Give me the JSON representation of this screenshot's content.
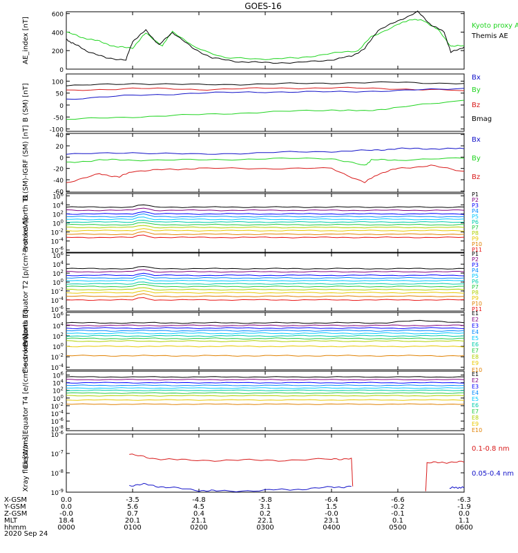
{
  "title": "GOES-16",
  "date": "2020 Sep 24",
  "colors": {
    "black": "#000000",
    "green": "#1fd41f",
    "blue": "#1010c8",
    "red": "#d81818",
    "protons": [
      "#000000",
      "#800080",
      "#0000ff",
      "#0088ff",
      "#00c8ff",
      "#00ccaa",
      "#22cc44",
      "#b0d000",
      "#e8c800",
      "#e08000",
      "#e81010"
    ],
    "electrons": [
      "#000000",
      "#800080",
      "#0000ff",
      "#0088ff",
      "#00c8ff",
      "#00ccaa",
      "#22cc44",
      "#b0d000",
      "#e8c800",
      "#e08000"
    ]
  },
  "chart_data": [
    {
      "type": "line",
      "ylabel": "AE_index [nT]",
      "yticks": [
        "0",
        "200",
        "400",
        "600"
      ],
      "ylim": [
        0,
        620
      ],
      "legend": [
        {
          "label": "Kyoto proxy AE",
          "color": "#1fd41f"
        },
        {
          "label": "Themis AE",
          "color": "#000000"
        }
      ],
      "series": [
        {
          "name": "Kyoto proxy AE",
          "color": "#1fd41f",
          "x": [
            0,
            0.25,
            0.5,
            0.75,
            1.0,
            1.2,
            1.45,
            1.6,
            1.9,
            2.4,
            3.0,
            3.5,
            4.0,
            4.4,
            4.6,
            5.0,
            5.2,
            5.4,
            5.6,
            5.8,
            6.0
          ],
          "y": [
            400,
            340,
            300,
            240,
            230,
            390,
            250,
            410,
            250,
            120,
            110,
            120,
            170,
            200,
            350,
            480,
            540,
            520,
            430,
            250,
            250
          ]
        },
        {
          "name": "Themis AE",
          "color": "#000000",
          "x": [
            0,
            0.1,
            0.3,
            0.6,
            0.9,
            1.0,
            1.2,
            1.4,
            1.6,
            1.9,
            2.2,
            2.6,
            3.0,
            3.5,
            4.0,
            4.3,
            4.5,
            4.7,
            5.0,
            5.3,
            5.5,
            5.7,
            5.8,
            6.0
          ],
          "y": [
            320,
            280,
            200,
            120,
            100,
            300,
            420,
            260,
            400,
            230,
            120,
            80,
            70,
            70,
            100,
            140,
            220,
            420,
            520,
            620,
            480,
            400,
            180,
            240
          ]
        }
      ]
    },
    {
      "type": "line",
      "ylabel": "B (SM) [nT]",
      "yticks": [
        "-100",
        "-50",
        "0",
        "50",
        "100"
      ],
      "ylim": [
        -110,
        130
      ],
      "legend": [
        {
          "label": "Bx",
          "color": "#1010c8"
        },
        {
          "label": "By",
          "color": "#1fd41f"
        },
        {
          "label": "Bz",
          "color": "#d81818"
        },
        {
          "label": "Bmag",
          "color": "#000000"
        }
      ],
      "series": [
        {
          "name": "Bmag",
          "color": "#000000",
          "x": [
            0,
            1,
            2,
            3,
            4,
            5,
            6
          ],
          "y": [
            80,
            90,
            85,
            88,
            92,
            95,
            90
          ]
        },
        {
          "name": "Bz",
          "color": "#d81818",
          "x": [
            0,
            1,
            2,
            3,
            4,
            5,
            6
          ],
          "y": [
            60,
            70,
            65,
            70,
            72,
            68,
            60
          ]
        },
        {
          "name": "Bx",
          "color": "#1010c8",
          "x": [
            0,
            1,
            2,
            3,
            4,
            5,
            6
          ],
          "y": [
            25,
            40,
            50,
            55,
            55,
            60,
            70
          ]
        },
        {
          "name": "By",
          "color": "#1fd41f",
          "x": [
            0,
            1,
            2,
            3,
            4,
            4.5,
            5,
            6
          ],
          "y": [
            -60,
            -50,
            -40,
            -30,
            -20,
            -25,
            -10,
            20
          ]
        }
      ]
    },
    {
      "type": "line",
      "ylabel": "B (SM)-IGRF (SM) [nT]",
      "yticks": [
        "-60",
        "-40",
        "-20",
        "0",
        "20",
        "40"
      ],
      "ylim": [
        -62,
        42
      ],
      "legend": [
        {
          "label": "Bx",
          "color": "#1010c8"
        },
        {
          "label": "By",
          "color": "#1fd41f"
        },
        {
          "label": "Bz",
          "color": "#d81818"
        }
      ],
      "series": [
        {
          "name": "Bx",
          "color": "#1010c8",
          "x": [
            0,
            1,
            2,
            3,
            4,
            4.6,
            5,
            5.5,
            6
          ],
          "y": [
            5,
            8,
            5,
            8,
            10,
            12,
            15,
            15,
            15
          ]
        },
        {
          "name": "By",
          "color": "#1fd41f",
          "x": [
            0,
            0.5,
            1,
            2,
            3,
            4,
            4.5,
            4.6,
            5,
            6
          ],
          "y": [
            -10,
            -5,
            -5,
            -5,
            -3,
            -2,
            -15,
            -5,
            -5,
            -2
          ]
        },
        {
          "name": "Bz",
          "color": "#d81818",
          "x": [
            0,
            0.5,
            0.8,
            1.0,
            1.5,
            2,
            3,
            4,
            4.5,
            4.7,
            5,
            5.5,
            6
          ],
          "y": [
            -45,
            -30,
            -35,
            -25,
            -22,
            -20,
            -20,
            -20,
            -45,
            -30,
            -20,
            -15,
            -25
          ]
        }
      ]
    },
    {
      "type": "line",
      "ylabel": "Protons North T1",
      "yscale": "log",
      "yticks": [
        "10^-6",
        "10^-4",
        "10^-2",
        "10^0",
        "10^2",
        "10^4",
        "10^6"
      ],
      "ylim_exp": [
        -6.5,
        6.5
      ],
      "legend": [
        "P1",
        "P2",
        "P3",
        "P4",
        "P5",
        "P6",
        "P7",
        "P8",
        "P9",
        "P10",
        "P11"
      ],
      "levels": [
        3.5,
        2.8,
        2.0,
        1.4,
        0.8,
        0.2,
        -0.4,
        -1.0,
        -1.7,
        -2.5,
        -3.2
      ]
    },
    {
      "type": "line",
      "ylabel": "Protons Equator T2 [p/(cm²-s-sr-keV)]",
      "yscale": "log",
      "yticks": [
        "10^-6",
        "10^-4",
        "10^-2",
        "10^0",
        "10^2",
        "10^4",
        "10^6"
      ],
      "ylim_exp": [
        -6.5,
        6.5
      ],
      "legend": [
        "P1",
        "P2",
        "P3",
        "P4",
        "P5",
        "P6",
        "P7",
        "P8",
        "P9",
        "P10",
        "P11"
      ],
      "levels": [
        3.0,
        2.3,
        1.5,
        0.9,
        0.3,
        -0.4,
        -1.0,
        -1.7,
        -2.4,
        -3.2,
        -4.0
      ]
    },
    {
      "type": "line",
      "ylabel": "Electrons North T3",
      "yscale": "log",
      "yticks": [
        "10^-4",
        "10^-2",
        "10^0",
        "10^2",
        "10^4",
        "10^6"
      ],
      "ylim_exp": [
        -4.5,
        6.5
      ],
      "legend": [
        "E1",
        "E2",
        "E3",
        "E4",
        "E5",
        "E6",
        "E7",
        "E8",
        "E9",
        "E10"
      ],
      "levels": [
        4.5,
        4.0,
        3.5,
        3.0,
        2.5,
        2.0,
        1.5,
        1.0,
        0.0,
        -1.8
      ]
    },
    {
      "type": "line",
      "ylabel": "Electrons Equator T4 [e/(cm²-s-sr-keV)]",
      "yscale": "log",
      "yticks": [
        "10^-8",
        "10^-6",
        "10^-4",
        "10^-2",
        "10^0",
        "10^2",
        "10^4",
        "10^6"
      ],
      "ylim_exp": [
        -8.5,
        7.0
      ],
      "legend": [
        "E1",
        "E2",
        "E3",
        "E4",
        "E5",
        "E6",
        "E7",
        "E8",
        "E9",
        "E10"
      ],
      "levels": [
        5.5,
        4.8,
        4.0,
        3.3,
        2.6,
        2.0,
        1.3,
        0.6,
        -0.5,
        -1.6
      ]
    },
    {
      "type": "line",
      "ylabel": "Xray flux [W/m²]",
      "yscale": "log",
      "yticks": [
        "10^-9",
        "10^-8",
        "10^-7",
        "10^-6"
      ],
      "ylim_exp": [
        -9.0,
        -6.0
      ],
      "legend": [
        {
          "label": "0.1-0.8 nm",
          "color": "#d81818"
        },
        {
          "label": "0.05-0.4 nm",
          "color": "#1010c8"
        }
      ],
      "series": [
        {
          "name": "0.1-0.8 nm",
          "color": "#d81818",
          "x": [
            0.95,
            1.3,
            1.8,
            2.5,
            3.2,
            4.0,
            4.3,
            4.32
          ],
          "y": [
            -7.05,
            -7.25,
            -7.35,
            -7.35,
            -7.35,
            -7.3,
            -7.25,
            -8.7
          ]
        },
        {
          "name": "0.1-0.8 nm",
          "color": "#d81818",
          "x": [
            5.42,
            5.44,
            5.7,
            6.0
          ],
          "y": [
            -9.0,
            -7.5,
            -7.45,
            -7.45
          ]
        },
        {
          "name": "0.05-0.4 nm",
          "color": "#1010c8",
          "x": [
            0.95,
            1.2,
            1.5,
            2.0,
            2.3,
            3.0,
            3.5,
            4.0,
            4.3
          ],
          "y": [
            -8.65,
            -8.6,
            -8.75,
            -8.9,
            -8.95,
            -8.9,
            -8.85,
            -8.75,
            -8.7
          ]
        },
        {
          "name": "0.05-0.4 nm",
          "color": "#1010c8",
          "x": [
            5.78,
            5.9,
            6.0
          ],
          "y": [
            -8.8,
            -8.75,
            -8.78
          ]
        }
      ]
    }
  ],
  "time_axis": {
    "row_labels": [
      "X-GSM",
      "Y-GSM",
      "Z-GSM",
      "MLT",
      "hhmm"
    ],
    "columns": [
      [
        "0.0",
        "0.0",
        "-0.0",
        "18.4",
        "0000"
      ],
      [
        "-3.5",
        "5.6",
        "0.7",
        "20.1",
        "0100"
      ],
      [
        "-4.8",
        "4.5",
        "0.4",
        "21.1",
        "0200"
      ],
      [
        "-5.8",
        "3.1",
        "0.2",
        "22.1",
        "0300"
      ],
      [
        "-6.4",
        "1.5",
        "-0.0",
        "23.1",
        "0400"
      ],
      [
        "-6.6",
        "-0.2",
        "-0.1",
        "0.1",
        "0500"
      ],
      [
        "-6.3",
        "-1.9",
        "0.0",
        "1.1",
        "0600"
      ]
    ]
  }
}
